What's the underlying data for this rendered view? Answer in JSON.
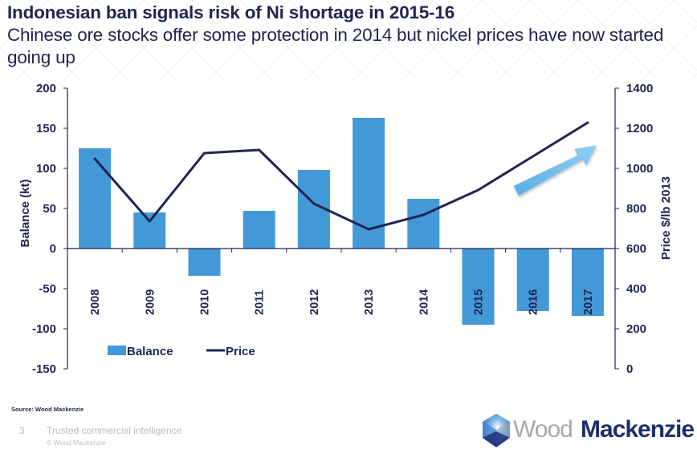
{
  "slide": {
    "title": "Indonesian ban signals risk of Ni shortage in 2015-16",
    "subtitle": "Chinese ore stocks offer some protection in 2014 but nickel prices have now started going up",
    "source": "Source: Wood Mackenzie",
    "page_number": "3",
    "tagline": "Trusted commercial intelligence",
    "copyright": "© Wood Mackenzie",
    "logo": {
      "word1": "Wood",
      "word2": "Mackenzie",
      "icon": "hexagon-cube-logo-icon"
    },
    "annotation_icon": "up-trend-arrow-icon"
  },
  "colors": {
    "bar": "#4398d8",
    "line": "#1f2550",
    "text": "#1f2550",
    "arrow": "#6db9ec"
  },
  "chart_data": {
    "type": "bar",
    "title": "",
    "xlabel": "",
    "ylabel": "Balance (kt)",
    "y2label": "Price $/lb 2013",
    "ylim": [
      -150,
      200
    ],
    "y2lim": [
      0,
      1400
    ],
    "yticks": [
      "200",
      "150",
      "100",
      "50",
      "0",
      "-50",
      "-100",
      "-150"
    ],
    "y2ticks": [
      "1400",
      "1200",
      "1000",
      "800",
      "600",
      "400",
      "200",
      "0"
    ],
    "grid": false,
    "legend_position": "bottom-left",
    "categories": [
      "2008",
      "2009",
      "2010",
      "2011",
      "2012",
      "2013",
      "2014",
      "2015",
      "2016",
      "2017"
    ],
    "series": [
      {
        "name": "Balance",
        "type": "bar",
        "axis": "left",
        "values": [
          125,
          45,
          -34,
          47,
          98,
          163,
          62,
          -95,
          -78,
          -84
        ]
      },
      {
        "name": "Price",
        "type": "line",
        "axis": "right",
        "values": [
          1048,
          736,
          1076,
          1092,
          824,
          696,
          768,
          892,
          1060,
          1228
        ]
      }
    ]
  }
}
